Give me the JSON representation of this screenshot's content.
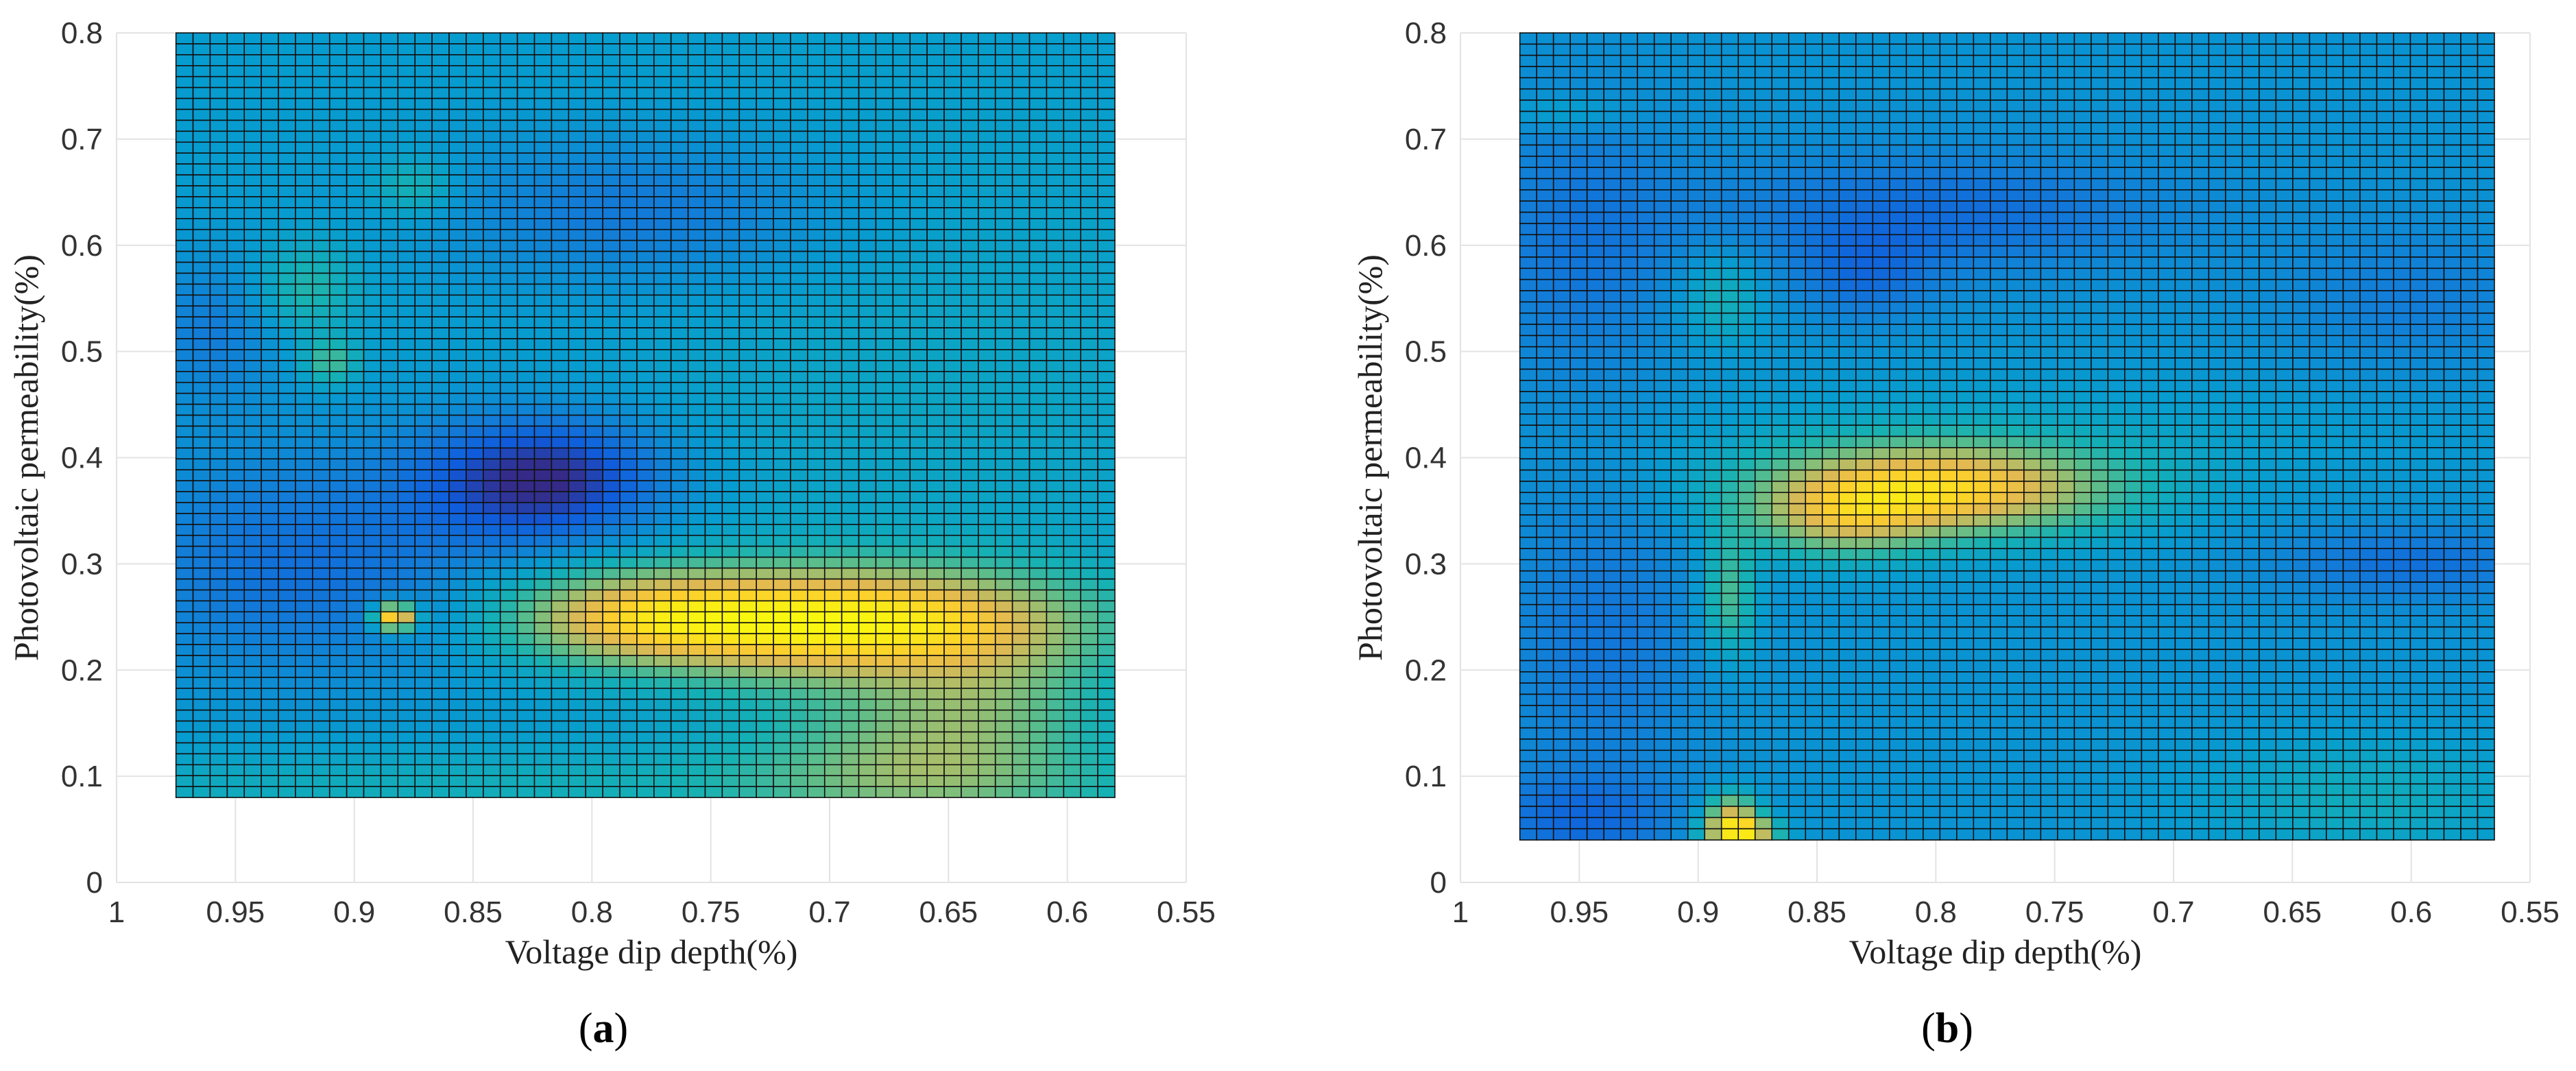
{
  "chart_data": [
    {
      "type": "heatmap",
      "caption_letter": "a",
      "xlabel": "Voltage dip depth(%)",
      "ylabel": "Photovoltaic permeability(%)",
      "xlim": [
        1,
        0.55
      ],
      "ylim": [
        0,
        0.8
      ],
      "x_reversed": true,
      "xticks": [
        "1",
        "0.95",
        "0.9",
        "0.85",
        "0.8",
        "0.75",
        "0.7",
        "0.65",
        "0.6",
        "0.55"
      ],
      "yticks": [
        "0",
        "0.1",
        "0.2",
        "0.3",
        "0.4",
        "0.5",
        "0.6",
        "0.7",
        "0.8"
      ],
      "grid": true,
      "data_extent": {
        "x": [
          0.975,
          0.58
        ],
        "y": [
          0.08,
          0.8
        ]
      },
      "grid_cells": {
        "nx": 55,
        "ny": 70
      },
      "base_level": 0.3,
      "features": [
        {
          "x": 0.82,
          "y": 0.38,
          "sx": 0.035,
          "sy": 0.04,
          "amp": -0.3,
          "note": "dark minimum"
        },
        {
          "x": 0.78,
          "y": 0.63,
          "sx": 0.06,
          "sy": 0.05,
          "amp": -0.12
        },
        {
          "x": 0.92,
          "y": 0.3,
          "sx": 0.06,
          "sy": 0.08,
          "amp": -0.14
        },
        {
          "x": 0.96,
          "y": 0.52,
          "sx": 0.02,
          "sy": 0.05,
          "amp": -0.1
        },
        {
          "x": 0.69,
          "y": 0.245,
          "sx": 0.06,
          "sy": 0.035,
          "amp": 0.6,
          "note": "bright maximum"
        },
        {
          "x": 0.78,
          "y": 0.25,
          "sx": 0.04,
          "sy": 0.03,
          "amp": 0.38
        },
        {
          "x": 0.665,
          "y": 0.12,
          "sx": 0.045,
          "sy": 0.05,
          "amp": 0.22
        },
        {
          "x": 0.63,
          "y": 0.18,
          "sx": 0.03,
          "sy": 0.05,
          "amp": 0.12
        },
        {
          "x": 0.92,
          "y": 0.56,
          "sx": 0.015,
          "sy": 0.03,
          "amp": 0.13
        },
        {
          "x": 0.91,
          "y": 0.49,
          "sx": 0.008,
          "sy": 0.015,
          "amp": 0.18
        },
        {
          "x": 0.875,
          "y": 0.655,
          "sx": 0.012,
          "sy": 0.02,
          "amp": 0.12
        },
        {
          "x": 0.883,
          "y": 0.25,
          "sx": 0.006,
          "sy": 0.009,
          "amp": 0.62,
          "note": "isolated bright cell"
        },
        {
          "x": 0.8,
          "y": 0.09,
          "sx": 0.25,
          "sy": 0.025,
          "amp": 0.08
        },
        {
          "x": 0.65,
          "y": 0.45,
          "sx": 0.1,
          "sy": 0.2,
          "amp": 0.04
        }
      ]
    },
    {
      "type": "heatmap",
      "caption_letter": "b",
      "xlabel": "Voltage dip depth(%)",
      "ylabel": "Photovoltaic permeability(%)",
      "xlim": [
        1,
        0.55
      ],
      "ylim": [
        0,
        0.8
      ],
      "x_reversed": true,
      "xticks": [
        "1",
        "0.95",
        "0.9",
        "0.85",
        "0.8",
        "0.75",
        "0.7",
        "0.65",
        "0.6",
        "0.55"
      ],
      "yticks": [
        "0",
        "0.1",
        "0.2",
        "0.3",
        "0.4",
        "0.5",
        "0.6",
        "0.7",
        "0.8"
      ],
      "grid": true,
      "data_extent": {
        "x": [
          0.975,
          0.565
        ],
        "y": [
          0.04,
          0.8
        ]
      },
      "grid_cells": {
        "nx": 58,
        "ny": 72
      },
      "base_level": 0.27,
      "features": [
        {
          "x": 0.8,
          "y": 0.37,
          "sx": 0.05,
          "sy": 0.03,
          "amp": 0.55,
          "note": "bright maximum"
        },
        {
          "x": 0.84,
          "y": 0.34,
          "sx": 0.025,
          "sy": 0.025,
          "amp": 0.25
        },
        {
          "x": 0.8,
          "y": 0.63,
          "sx": 0.07,
          "sy": 0.04,
          "amp": -0.12
        },
        {
          "x": 0.83,
          "y": 0.57,
          "sx": 0.02,
          "sy": 0.03,
          "amp": -0.1
        },
        {
          "x": 0.95,
          "y": 0.6,
          "sx": 0.03,
          "sy": 0.1,
          "amp": -0.09
        },
        {
          "x": 0.94,
          "y": 0.23,
          "sx": 0.03,
          "sy": 0.1,
          "amp": -0.09
        },
        {
          "x": 0.95,
          "y": 0.06,
          "sx": 0.03,
          "sy": 0.03,
          "amp": -0.12
        },
        {
          "x": 0.6,
          "y": 0.3,
          "sx": 0.04,
          "sy": 0.025,
          "amp": -0.11
        },
        {
          "x": 0.6,
          "y": 0.55,
          "sx": 0.04,
          "sy": 0.05,
          "amp": -0.07
        },
        {
          "x": 0.62,
          "y": 0.08,
          "sx": 0.05,
          "sy": 0.04,
          "amp": 0.1
        },
        {
          "x": 0.89,
          "y": 0.55,
          "sx": 0.012,
          "sy": 0.03,
          "amp": 0.13
        },
        {
          "x": 0.955,
          "y": 0.725,
          "sx": 0.02,
          "sy": 0.012,
          "amp": 0.08
        },
        {
          "x": 0.887,
          "y": 0.27,
          "sx": 0.008,
          "sy": 0.04,
          "amp": 0.22
        },
        {
          "x": 0.886,
          "y": 0.065,
          "sx": 0.008,
          "sy": 0.015,
          "amp": 0.35
        },
        {
          "x": 0.882,
          "y": 0.047,
          "sx": 0.01,
          "sy": 0.01,
          "amp": 0.55,
          "note": "bright cells at bottom"
        },
        {
          "x": 0.76,
          "y": 0.42,
          "sx": 0.12,
          "sy": 0.04,
          "amp": 0.05
        }
      ]
    }
  ]
}
